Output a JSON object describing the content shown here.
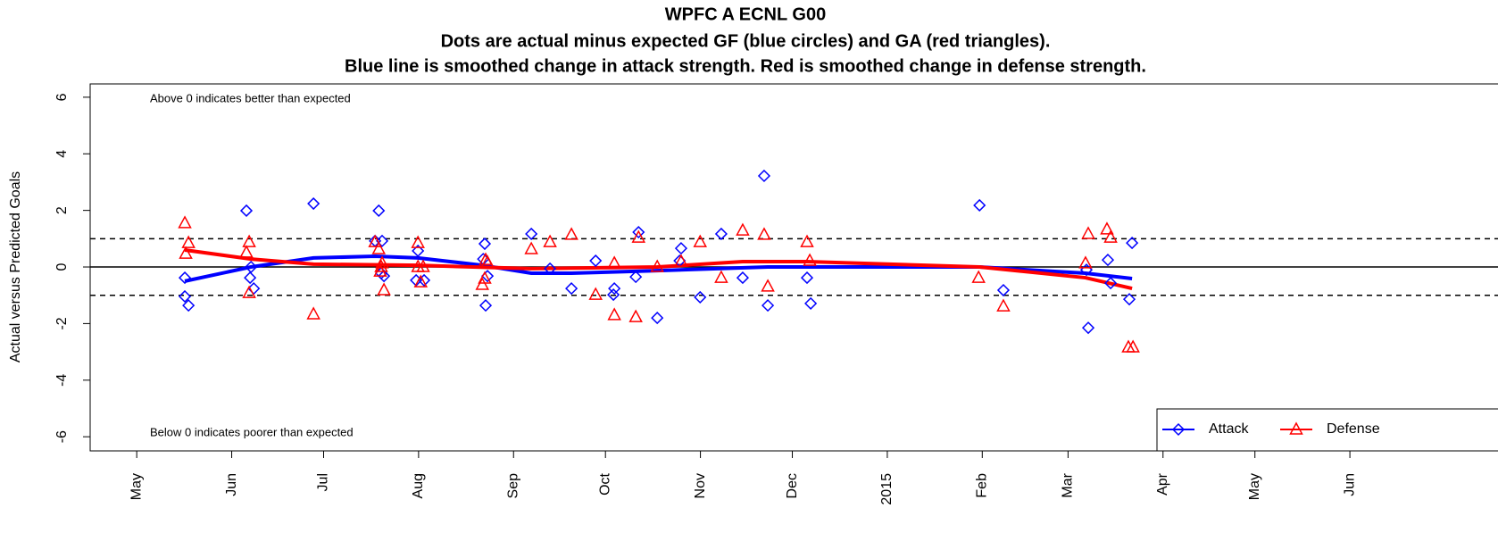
{
  "chart_data": {
    "type": "scatter",
    "title": [
      "WPFC A ECNL G00",
      "Dots are actual minus expected GF (blue circles) and GA (red triangles).",
      "Blue line is smoothed change in attack strength. Red is smoothed change in defense strength."
    ],
    "ylabel": "Actual versus Predicted Goals",
    "annotations": [
      "Above 0 indicates better than expected",
      "Below 0 indicates poorer than expected"
    ],
    "xlim": [
      -15.2,
      450
    ],
    "ylim": [
      -6.5,
      6.47
    ],
    "xticks": [
      {
        "value": 0,
        "label": "May"
      },
      {
        "value": 31,
        "label": "Jun"
      },
      {
        "value": 61,
        "label": "Jul"
      },
      {
        "value": 92,
        "label": "Aug"
      },
      {
        "value": 123,
        "label": "Sep"
      },
      {
        "value": 153,
        "label": "Oct"
      },
      {
        "value": 184,
        "label": "Nov"
      },
      {
        "value": 214,
        "label": "Dec"
      },
      {
        "value": 245,
        "label": "2015"
      },
      {
        "value": 276,
        "label": "Feb"
      },
      {
        "value": 304,
        "label": "Mar"
      },
      {
        "value": 335,
        "label": "Apr"
      },
      {
        "value": 365,
        "label": "May"
      },
      {
        "value": 396,
        "label": "Jun"
      }
    ],
    "yticks": [
      -6,
      -4,
      -2,
      0,
      2,
      4,
      6
    ],
    "reference_lines": [
      {
        "value": 1,
        "style": "dashed"
      },
      {
        "value": 0,
        "style": "solid"
      },
      {
        "value": -1,
        "style": "dashed"
      }
    ],
    "legend": "bottom-right",
    "series": [
      {
        "name": "Attack",
        "color": "#0000ff",
        "marker": "diamond",
        "x": [
          15.7,
          15.7,
          16.9,
          35.8,
          37.0,
          37.3,
          38.2,
          57.7,
          79.0,
          77.8,
          80.1,
          79.8,
          80.7,
          91.8,
          91.2,
          93.8,
          113.1,
          113.6,
          113.9,
          114.5,
          128.8,
          134.9,
          141.9,
          149.8,
          155.9,
          155.6,
          163.8,
          162.9,
          169.9,
          177.7,
          177.2,
          183.9,
          190.8,
          197.8,
          204.8,
          206.0,
          218.8,
          220.0,
          275.1,
          282.9,
          310.0,
          310.6,
          317.0,
          317.9,
          324.0,
          324.9
        ],
        "values": [
          -0.38,
          -1.04,
          -1.36,
          1.99,
          -0.38,
          0,
          -0.76,
          2.24,
          1.99,
          0.92,
          0.92,
          -0.22,
          -0.32,
          0.57,
          -0.47,
          -0.47,
          0.28,
          0.82,
          -1.36,
          -0.32,
          1.17,
          -0.06,
          -0.76,
          0.22,
          -0.76,
          -0.98,
          1.23,
          -0.35,
          -1.8,
          0.66,
          0.22,
          -1.07,
          1.17,
          -0.38,
          3.22,
          -1.36,
          -0.38,
          -1.29,
          2.18,
          -0.82,
          -0.1,
          -2.15,
          0.25,
          -0.57,
          -1.14,
          0.85
        ]
      },
      {
        "name": "Defense",
        "color": "#ff0000",
        "marker": "triangle",
        "x": [
          15.7,
          16.0,
          16.9,
          35.8,
          36.7,
          36.7,
          57.7,
          77.8,
          79.0,
          80.1,
          79.5,
          80.7,
          79.8,
          91.8,
          91.8,
          93.5,
          92.7,
          112.8,
          113.9,
          114.5,
          113.6,
          128.8,
          134.9,
          141.9,
          149.8,
          155.9,
          155.9,
          162.9,
          163.8,
          169.9,
          177.7,
          183.9,
          190.8,
          197.8,
          204.8,
          206.0,
          218.8,
          219.7,
          274.8,
          282.9,
          309.7,
          310.6,
          316.7,
          317.9,
          323.7,
          325.2
        ],
        "values": [
          1.55,
          0.47,
          0.85,
          0.51,
          0.88,
          -0.92,
          -1.67,
          0.88,
          0.63,
          0.13,
          -0.16,
          -0.82,
          0,
          0.85,
          0,
          0,
          -0.54,
          -0.63,
          0.25,
          0.16,
          -0.41,
          0.63,
          0.88,
          1.14,
          -0.98,
          0.13,
          -1.7,
          -1.77,
          1.04,
          0,
          0.19,
          0.88,
          -0.38,
          1.29,
          1.14,
          -0.69,
          0.88,
          0.22,
          -0.38,
          -1.39,
          0.13,
          1.17,
          1.33,
          1.04,
          -2.84,
          -2.84
        ]
      }
    ],
    "smooth_lines": [
      {
        "color": "#0000ff",
        "x": [
          15.7,
          37.3,
          57.7,
          77.8,
          91.8,
          112.8,
          128.8,
          141.9,
          169.9,
          206.0,
          275.1,
          309.7,
          324.9
        ],
        "values": [
          -0.5,
          0,
          0.32,
          0.38,
          0.32,
          0.06,
          -0.22,
          -0.22,
          -0.13,
          0,
          0,
          -0.22,
          -0.41
        ]
      },
      {
        "color": "#ff0000",
        "x": [
          15.7,
          37.3,
          57.7,
          91.8,
          128.8,
          169.9,
          197.8,
          218.8,
          275.1,
          309.7,
          324.9
        ],
        "values": [
          0.6,
          0.28,
          0.1,
          0.06,
          -0.06,
          0,
          0.19,
          0.19,
          0,
          -0.38,
          -0.76
        ]
      }
    ]
  }
}
